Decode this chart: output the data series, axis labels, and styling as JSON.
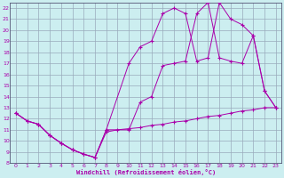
{
  "xlabel": "Windchill (Refroidissement éolien,°C)",
  "xlim": [
    -0.5,
    23.5
  ],
  "ylim": [
    8,
    22.5
  ],
  "xticks": [
    0,
    1,
    2,
    3,
    4,
    5,
    6,
    7,
    8,
    9,
    10,
    11,
    12,
    13,
    14,
    15,
    16,
    17,
    18,
    19,
    20,
    21,
    22,
    23
  ],
  "yticks": [
    8,
    9,
    10,
    11,
    12,
    13,
    14,
    15,
    16,
    17,
    18,
    19,
    20,
    21,
    22
  ],
  "bg_color": "#cceef0",
  "line_color": "#aa00aa",
  "grid_color": "#99aabb",
  "series1": [
    [
      0,
      12.5
    ],
    [
      1,
      11.8
    ],
    [
      2,
      11.5
    ],
    [
      3,
      10.5
    ],
    [
      4,
      9.8
    ],
    [
      5,
      9.2
    ],
    [
      6,
      8.8
    ],
    [
      7,
      8.5
    ],
    [
      8,
      10.8
    ],
    [
      9,
      11.0
    ],
    [
      10,
      11.1
    ],
    [
      11,
      11.2
    ],
    [
      12,
      11.4
    ],
    [
      13,
      11.5
    ],
    [
      14,
      11.7
    ],
    [
      15,
      11.8
    ],
    [
      16,
      12.0
    ],
    [
      17,
      12.2
    ],
    [
      18,
      12.3
    ],
    [
      19,
      12.5
    ],
    [
      20,
      12.7
    ],
    [
      21,
      12.8
    ],
    [
      22,
      13.0
    ],
    [
      23,
      13.0
    ]
  ],
  "series2": [
    [
      0,
      12.5
    ],
    [
      1,
      11.8
    ],
    [
      2,
      11.5
    ],
    [
      3,
      10.5
    ],
    [
      4,
      9.8
    ],
    [
      5,
      9.2
    ],
    [
      6,
      8.8
    ],
    [
      7,
      8.5
    ],
    [
      8,
      11.0
    ],
    [
      10,
      17.0
    ],
    [
      11,
      18.5
    ],
    [
      12,
      19.0
    ],
    [
      13,
      21.5
    ],
    [
      14,
      22.0
    ],
    [
      15,
      21.5
    ],
    [
      16,
      17.2
    ],
    [
      17,
      17.5
    ],
    [
      18,
      22.5
    ],
    [
      19,
      21.0
    ],
    [
      20,
      20.5
    ],
    [
      21,
      19.5
    ],
    [
      22,
      14.5
    ],
    [
      23,
      13.0
    ]
  ],
  "series3": [
    [
      0,
      12.5
    ],
    [
      1,
      11.8
    ],
    [
      2,
      11.5
    ],
    [
      3,
      10.5
    ],
    [
      4,
      9.8
    ],
    [
      5,
      9.2
    ],
    [
      6,
      8.8
    ],
    [
      7,
      8.5
    ],
    [
      8,
      11.0
    ],
    [
      10,
      11.0
    ],
    [
      11,
      13.5
    ],
    [
      12,
      14.0
    ],
    [
      13,
      16.8
    ],
    [
      14,
      17.0
    ],
    [
      15,
      17.2
    ],
    [
      16,
      21.5
    ],
    [
      17,
      22.5
    ],
    [
      18,
      17.5
    ],
    [
      19,
      17.2
    ],
    [
      20,
      17.0
    ],
    [
      21,
      19.5
    ],
    [
      22,
      14.5
    ],
    [
      23,
      13.0
    ]
  ]
}
